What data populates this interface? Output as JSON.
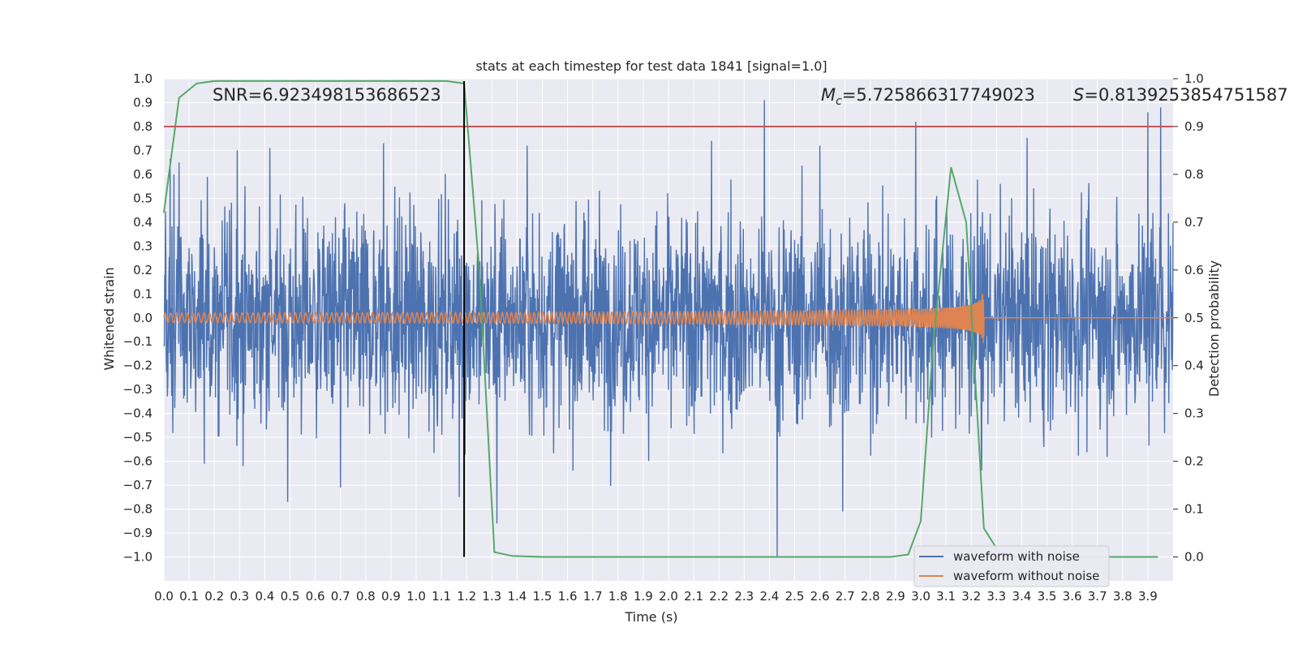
{
  "chart_data": {
    "type": "line",
    "title": "stats at each timestep for test data 1841 [signal=1.0]",
    "xlabel": "Time (s)",
    "ylabel": "Whitened strain",
    "y2label": "Detection probability",
    "xlim": [
      0.0,
      4.0
    ],
    "ylim": [
      -1.1,
      1.0
    ],
    "y2lim": [
      -0.05,
      1.0
    ],
    "x_ticks": [
      "0.0",
      "0.1",
      "0.2",
      "0.3",
      "0.4",
      "0.5",
      "0.6",
      "0.7",
      "0.8",
      "0.9",
      "1.0",
      "1.1",
      "1.2",
      "1.3",
      "1.4",
      "1.5",
      "1.6",
      "1.7",
      "1.8",
      "1.9",
      "2.0",
      "2.1",
      "2.2",
      "2.3",
      "2.4",
      "2.5",
      "2.6",
      "2.7",
      "2.8",
      "2.9",
      "3.0",
      "3.1",
      "3.2",
      "3.3",
      "3.4",
      "3.5",
      "3.6",
      "3.7",
      "3.8",
      "3.9"
    ],
    "y_ticks": [
      "1.0",
      "0.9",
      "0.8",
      "0.7",
      "0.6",
      "0.5",
      "0.4",
      "0.3",
      "0.2",
      "0.1",
      "0.0",
      "−0.1",
      "−0.2",
      "−0.3",
      "−0.4",
      "−0.5",
      "−0.6",
      "−0.7",
      "−0.8",
      "−0.9",
      "−1.0"
    ],
    "y2_ticks": [
      "1.0",
      "0.9",
      "0.8",
      "0.7",
      "0.6",
      "0.5",
      "0.4",
      "0.3",
      "0.2",
      "0.1",
      "0.0"
    ],
    "grid": true,
    "legend_placement": "lower-right",
    "annotations": {
      "snr": "SNR=6.923498153686523",
      "mc_symbol": "M",
      "mc_sub": "c",
      "mc_value": "=5.725866317749023",
      "s_symbol": "S",
      "s_value": "=0.8139253854751587"
    },
    "threshold_y2": 0.9,
    "marker_x": 1.19,
    "series": [
      {
        "name": "waveform with noise",
        "color": "#4c72b0",
        "axis": "left",
        "description_points": "noise",
        "amplitude_std": 0.22,
        "spikes": [
          {
            "x": 0.04,
            "y": 0.6
          },
          {
            "x": 0.06,
            "y": 0.65
          },
          {
            "x": 0.42,
            "y": 0.71
          },
          {
            "x": 0.29,
            "y": 0.7
          },
          {
            "x": 0.87,
            "y": 0.73
          },
          {
            "x": 1.44,
            "y": 0.72
          },
          {
            "x": 2.17,
            "y": 0.74
          },
          {
            "x": 2.38,
            "y": 0.91
          },
          {
            "x": 2.6,
            "y": 0.72
          },
          {
            "x": 2.98,
            "y": 0.82
          },
          {
            "x": 3.9,
            "y": 0.86
          },
          {
            "x": 3.95,
            "y": 0.88
          },
          {
            "x": 0.49,
            "y": -0.77
          },
          {
            "x": 0.7,
            "y": -0.71
          },
          {
            "x": 1.32,
            "y": -0.86
          },
          {
            "x": 2.43,
            "y": -1.0
          },
          {
            "x": 2.69,
            "y": -0.81
          },
          {
            "x": 1.17,
            "y": -0.75
          },
          {
            "x": 0.16,
            "y": -0.61
          },
          {
            "x": 3.24,
            "y": -0.56
          }
        ]
      },
      {
        "name": "waveform without noise",
        "color": "#dd8452",
        "axis": "left",
        "chirp_start_amplitude": 0.02,
        "chirp_end_time": 3.25,
        "chirp_peak_amplitude": 0.14
      },
      {
        "name": "detection probability",
        "color": "#55a868",
        "axis": "right",
        "x": [
          0.0,
          0.06,
          0.13,
          0.2,
          0.5,
          1.0,
          1.12,
          1.19,
          1.25,
          1.31,
          1.38,
          1.5,
          2.0,
          2.5,
          2.88,
          2.95,
          3.0,
          3.05,
          3.12,
          3.18,
          3.25,
          3.31,
          3.38,
          3.5,
          3.94
        ],
        "y": [
          0.72,
          0.96,
          0.99,
          0.995,
          0.995,
          0.995,
          0.995,
          0.99,
          0.6,
          0.01,
          0.002,
          0.0,
          0.0,
          0.0,
          0.0,
          0.005,
          0.075,
          0.45,
          0.815,
          0.7,
          0.06,
          0.01,
          0.0,
          0.0,
          0.0
        ]
      }
    ],
    "colors": {
      "background": "#eaeaf2",
      "grid": "#ffffff",
      "threshold": "#c44e52",
      "marker": "#000000"
    }
  }
}
